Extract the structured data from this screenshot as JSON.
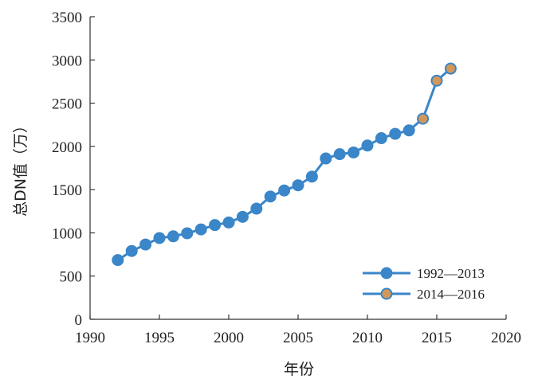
{
  "chart_data": {
    "type": "line",
    "title": "",
    "xlabel": "年份",
    "ylabel": "总DN值（万）",
    "xlim": [
      1990,
      2020
    ],
    "ylim": [
      0,
      3500
    ],
    "xticks": [
      1990,
      1995,
      2000,
      2005,
      2010,
      2015,
      2020
    ],
    "yticks": [
      0,
      500,
      1000,
      1500,
      2000,
      2500,
      3000,
      3500
    ],
    "grid": false,
    "legend_position": "bottom-right",
    "line_color": "#3a86c8",
    "series": [
      {
        "name": "1992—2013",
        "marker_color": "#3a86c8",
        "x": [
          1992,
          1993,
          1994,
          1995,
          1996,
          1997,
          1998,
          1999,
          2000,
          2001,
          2002,
          2003,
          2004,
          2005,
          2006,
          2007,
          2008,
          2009,
          2010,
          2011,
          2012,
          2013
        ],
        "y": [
          685,
          790,
          865,
          940,
          960,
          995,
          1040,
          1090,
          1120,
          1185,
          1280,
          1420,
          1490,
          1550,
          1650,
          1860,
          1910,
          1930,
          2010,
          2095,
          2145,
          2185
        ]
      },
      {
        "name": "2014—2016",
        "marker_color": "#d4975a",
        "x": [
          2014,
          2015,
          2016
        ],
        "y": [
          2320,
          2760,
          2900
        ]
      }
    ]
  }
}
